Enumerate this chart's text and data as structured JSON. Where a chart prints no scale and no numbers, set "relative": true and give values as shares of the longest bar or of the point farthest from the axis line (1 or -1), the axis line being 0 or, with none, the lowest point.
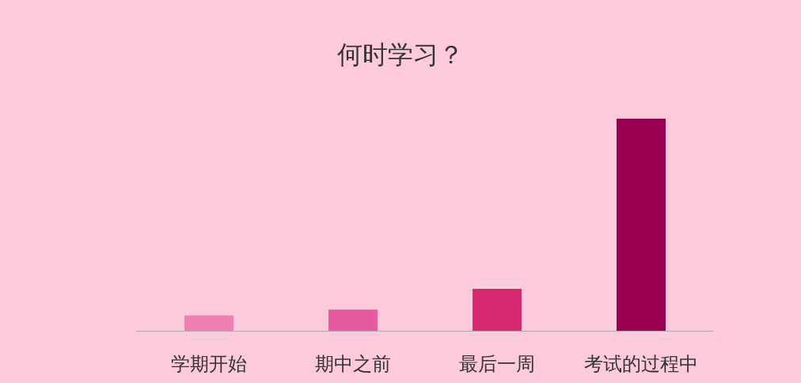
{
  "chart_data": {
    "type": "bar",
    "title": "何时学习？",
    "relative": true,
    "categories": [
      "学期开始",
      "期中之前",
      "最后一周",
      "考试的过程中"
    ],
    "values": [
      0.073,
      0.1,
      0.198,
      1
    ],
    "colors": [
      "#f07fb5",
      "#e85a9f",
      "#d6286f",
      "#9a0052"
    ],
    "data_labels": false
  }
}
